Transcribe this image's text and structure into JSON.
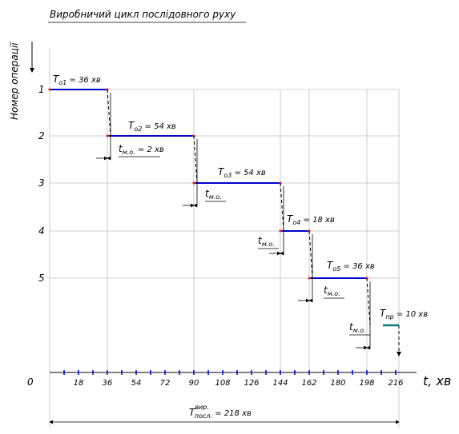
{
  "title": "Виробничий цикл послідовного руху",
  "y_axis_label": "Номер операції",
  "x_axis_label": "t, хв",
  "origin_label": "0",
  "operations": [
    "1",
    "2",
    "3",
    "4",
    "5"
  ],
  "x_ticks": [
    "18",
    "36",
    "54",
    "72",
    "90",
    "108",
    "126",
    "144",
    "162",
    "180",
    "198",
    "216"
  ],
  "chart_data": {
    "type": "gantt",
    "x_unit": "хв",
    "xlim": [
      0,
      218
    ],
    "x_tick_values": [
      18,
      36,
      54,
      72,
      90,
      108,
      126,
      144,
      162,
      180,
      198,
      216
    ],
    "operations": [
      {
        "number": 1,
        "start": 0,
        "end": 36,
        "label_main": "T",
        "label_sub": "o1",
        "label_rest": "= 36 хв"
      },
      {
        "number": 2,
        "start": 36,
        "end": 90,
        "label_main": "T",
        "label_sub": "o2",
        "label_rest": "= 54 хв"
      },
      {
        "number": 3,
        "start": 90,
        "end": 144,
        "label_main": "T",
        "label_sub": "o3",
        "label_rest": "= 54 хв"
      },
      {
        "number": 4,
        "start": 144,
        "end": 162,
        "label_main": "T",
        "label_sub": "o4",
        "label_rest": "= 18 хв"
      },
      {
        "number": 5,
        "start": 162,
        "end": 198,
        "label_main": "T",
        "label_sub": "o5",
        "label_rest": "= 36 хв"
      }
    ],
    "transfers": [
      {
        "at": 36,
        "label_main": "t",
        "label_sub": "м.о.",
        "label_rest": "= 2 хв"
      },
      {
        "at": 90,
        "label_main": "t",
        "label_sub": "м.о.",
        "label_rest": ""
      },
      {
        "at": 144,
        "label_main": "t",
        "label_sub": "м.о.",
        "label_rest": ""
      },
      {
        "at": 162,
        "label_main": "t",
        "label_sub": "м.о.",
        "label_rest": ""
      },
      {
        "at": 198,
        "label_main": "t",
        "label_sub": "м.о.",
        "label_rest": ""
      }
    ],
    "natural_process": {
      "start": 208,
      "end": 218,
      "label_main": "T",
      "label_sub": "пр",
      "label_rest": "= 10 хв"
    },
    "total": {
      "label_main": "T",
      "label_sup": "вир.",
      "label_sub": "посл.",
      "label_rest": "= 218 хв",
      "value": 218
    },
    "colors": {
      "operation": "#0000cc",
      "natural": "#008080",
      "grid": "#c0c0c0",
      "axis_tick": "#0000cc"
    }
  }
}
